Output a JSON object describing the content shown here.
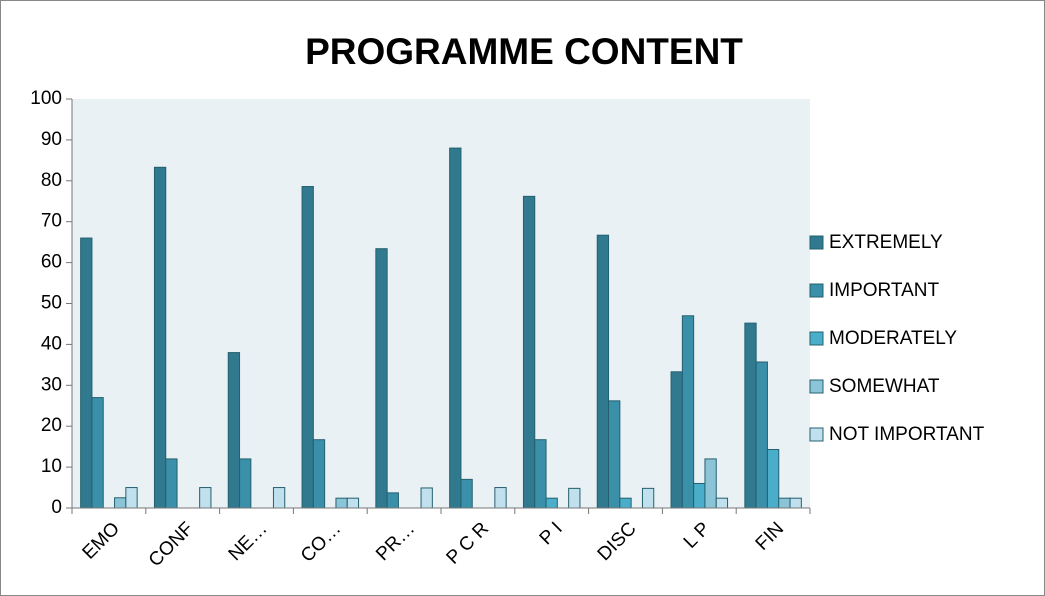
{
  "chart_data": {
    "type": "bar",
    "title": "PROGRAMME CONTENT",
    "categories": [
      "EMO",
      "CONF",
      "NE…",
      "CO…",
      "PR…",
      "P C R",
      "P I",
      "DISC",
      "L P",
      "FIN"
    ],
    "series": [
      {
        "name": "EXTREMELY",
        "color": "#31798f",
        "values": [
          66,
          83.3,
          38,
          78.6,
          63.4,
          88,
          76.2,
          66.7,
          33.3,
          45.2
        ]
      },
      {
        "name": "IMPORTANT",
        "color": "#3a8fa9",
        "values": [
          27,
          12,
          12,
          16.7,
          3.7,
          7,
          16.7,
          26.2,
          47,
          35.7
        ]
      },
      {
        "name": "MODERATELY",
        "color": "#4aaecb",
        "values": [
          0,
          0,
          0,
          0,
          0,
          0,
          2.4,
          2.4,
          6,
          14.3
        ]
      },
      {
        "name": "SOMEWHAT",
        "color": "#8cc4d7",
        "values": [
          2.5,
          0,
          0,
          2.4,
          0,
          0,
          0,
          0,
          12,
          2.4
        ]
      },
      {
        "name": "NOT IMPORTANT",
        "color": "#bfe0ec",
        "values": [
          5,
          5,
          5,
          2.4,
          4.9,
          5,
          4.8,
          4.8,
          2.4,
          2.4
        ]
      }
    ],
    "ylim": [
      0,
      100
    ],
    "yticks": [
      0,
      10,
      20,
      30,
      40,
      50,
      60,
      70,
      80,
      90,
      100
    ],
    "legend": "right"
  }
}
